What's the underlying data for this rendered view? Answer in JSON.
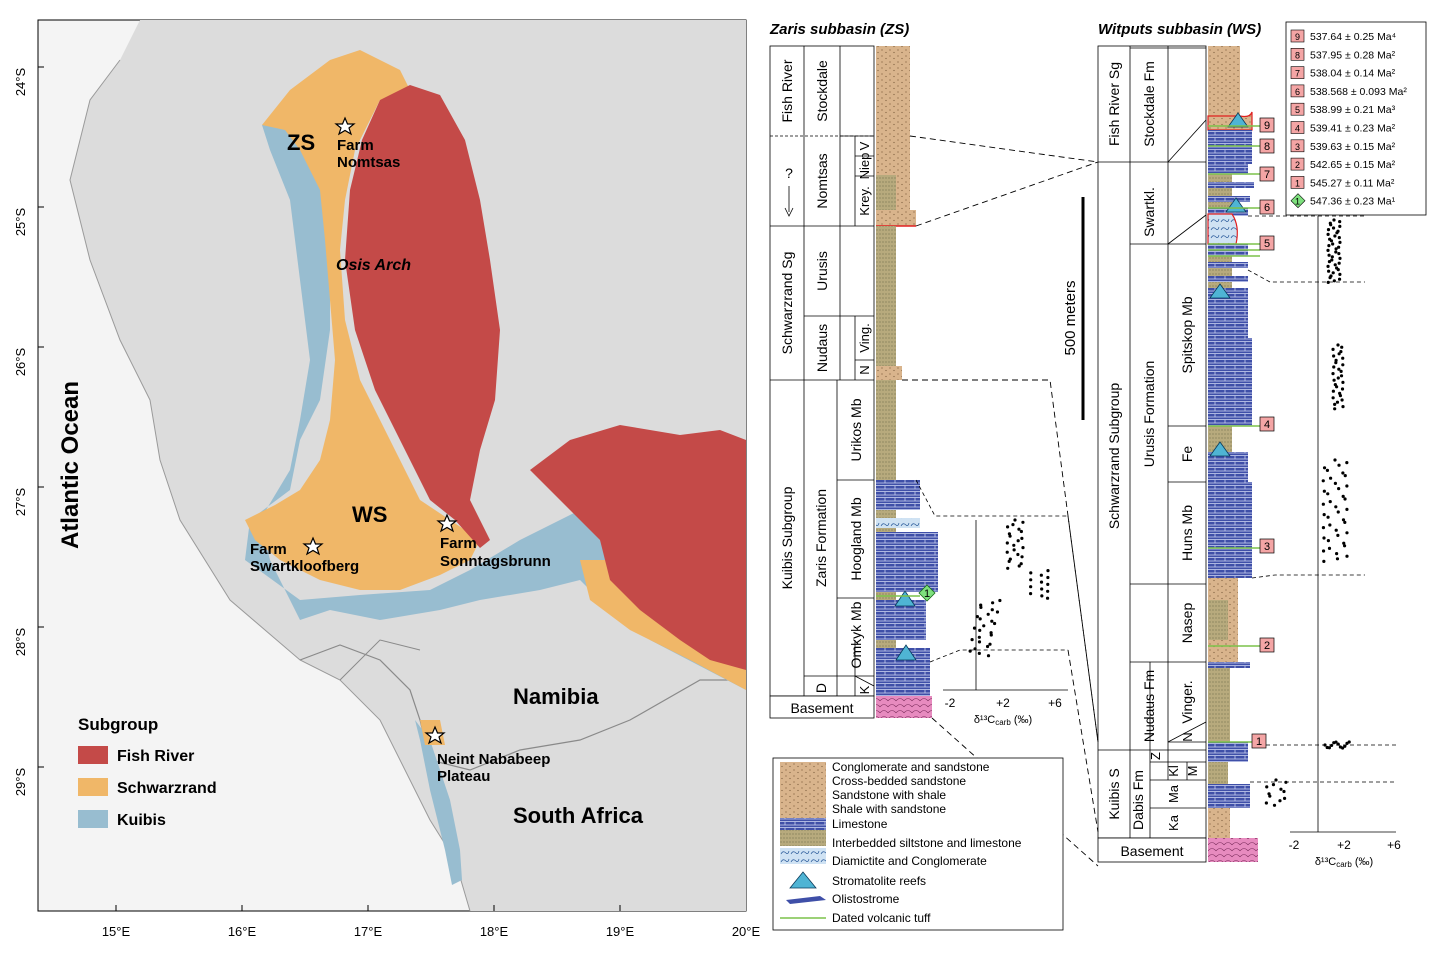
{
  "colors": {
    "fish_river": "#c44a48",
    "schwarzrand": "#f0b768",
    "kuibis": "#98bdd0",
    "terrain": "#dcdcdc",
    "ocean": "#f4f4f4",
    "limestone": "#3f4fa8",
    "sandstone": "#d9b48c",
    "shale": "#b7aa7d",
    "basement": "#e78bbf",
    "reef": "#4fb4d4",
    "tuff": "#7cc24a",
    "age_box": "#f4a5a5",
    "age_diamond": "#7ee07e"
  },
  "map": {
    "lat_labels": [
      "24°S",
      "25°S",
      "26°S",
      "27°S",
      "28°S",
      "29°S"
    ],
    "lon_labels": [
      "15°E",
      "16°E",
      "17°E",
      "18°E",
      "19°E",
      "20°E"
    ],
    "ocean_label": "Atlantic Ocean",
    "zs_label": "ZS",
    "ws_label": "WS",
    "osis_arch": "Osis Arch",
    "namibia": "Namibia",
    "south_africa": "South Africa",
    "farms": {
      "nomtsas": [
        "Farm",
        "Nomtsas"
      ],
      "swartkloofberg": [
        "Farm",
        "Swartkloofberg"
      ],
      "sonntagsbrunn": [
        "Farm",
        "Sonntagsbrunn"
      ],
      "neint": [
        "Neint Nababeep",
        "Plateau"
      ]
    },
    "legend": {
      "title": "Subgroup",
      "items": [
        "Fish River",
        "Schwarzrand",
        "Kuibis"
      ]
    }
  },
  "zaris": {
    "title": "Zaris subbasin (ZS)",
    "units": {
      "fish_river": "Fish River",
      "stockdale": "Stockdale",
      "question": "?",
      "nomtsas": "Nomtsas",
      "niep": "Niep",
      "v": "V",
      "krey": "Krey.",
      "schwarzrand_sg": "Schwarzrand Sg",
      "urusis": "Urusis",
      "nudaus": "Nudaus",
      "ving": "Ving.",
      "n": "N",
      "kuibis_subgroup": "Kuibis Subgroup",
      "zaris_formation": "Zaris Formation",
      "urikos": "Urikos Mb",
      "hoogland": "Hoogland Mb",
      "omkyk": "Omkyk Mb",
      "d": "D",
      "k": "K",
      "basement": "Basement"
    },
    "axis": {
      "ticks": [
        "-2",
        "+2",
        "+6"
      ],
      "label": "δ¹³C",
      "sub": "carb",
      "unit": " (‰)"
    }
  },
  "witputs": {
    "title": "Witputs subbasin (WS)",
    "units": {
      "fish_river_sg": "Fish River Sg",
      "stockdale_fm": "Stockdale Fm",
      "swartkl": "Swartkl.",
      "schwarzrand_subgroup": "Schwarzrand Subgroup",
      "urusis_formation": "Urusis Formation",
      "spitskop": "Spitskop Mb",
      "fe": "Fe",
      "huns": "Huns Mb",
      "nasep": "Nasep",
      "nudaus_fm": "Nudaus Fm",
      "vinger": "Vinger.",
      "n": "N",
      "z": "Z",
      "kuibis_s": "Kuibis S",
      "dabis_fm": "Dabis Fm",
      "kl": "Kl",
      "m": "M",
      "ma": "Ma",
      "ka": "Ka",
      "basement": "Basement"
    },
    "axis": {
      "ticks": [
        "-2",
        "+2",
        "+6"
      ],
      "label": "δ¹³C",
      "sub": "carb",
      "unit": " (‰)"
    }
  },
  "scale_bar": "500 meters",
  "ages": [
    {
      "n": "9",
      "t": "537.64 ± 0.25 Ma⁴"
    },
    {
      "n": "8",
      "t": "537.95 ± 0.28 Ma²"
    },
    {
      "n": "7",
      "t": "538.04 ± 0.14 Ma²"
    },
    {
      "n": "6",
      "t": "538.568 ± 0.093 Ma²"
    },
    {
      "n": "5",
      "t": "538.99 ± 0.21 Ma³"
    },
    {
      "n": "4",
      "t": "539.41 ± 0.23 Ma²"
    },
    {
      "n": "3",
      "t": "539.63 ± 0.15 Ma²"
    },
    {
      "n": "2",
      "t": "542.65 ± 0.15 Ma²"
    },
    {
      "n": "1",
      "t": "545.27 ± 0.11 Ma²"
    },
    {
      "n": "1",
      "t": "547.36 ± 0.23 Ma¹"
    }
  ],
  "litho_legend": [
    "Conglomerate and sandstone",
    "Cross-bedded sandstone",
    "Sandstone with shale",
    "Shale with sandstone",
    "Limestone",
    "Interbedded siltstone and limestone",
    "Diamictite and Conglomerate",
    "Stromatolite reefs",
    "Olistostrome",
    "Dated volcanic tuff"
  ]
}
